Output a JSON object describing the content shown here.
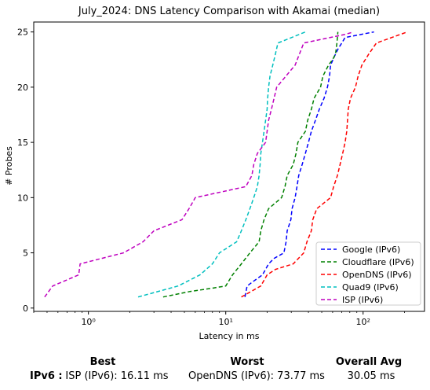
{
  "chart_data": {
    "type": "line",
    "title": "July_2024: DNS Latency Comparison with Akamai (median)",
    "xlabel": "Latency in ms",
    "ylabel": "# Probes",
    "xscale": "log",
    "xlim": [
      0.4,
      280
    ],
    "ylim": [
      -0.3,
      25.9
    ],
    "xticks": [
      {
        "value": 1,
        "label": "10⁰"
      },
      {
        "value": 10,
        "label": "10¹"
      },
      {
        "value": 100,
        "label": "10²"
      }
    ],
    "yticks": [
      0,
      5,
      10,
      15,
      20,
      25
    ],
    "legend_position": "bottom-right",
    "grid": false,
    "series": [
      {
        "name": "Google (IPv6)",
        "color": "#0000ff",
        "x": [
          13.8,
          14.3,
          16.2,
          18.5,
          20.5,
          22.5,
          26.5,
          27.5,
          28.0,
          29.8,
          30.4,
          32.0,
          33.0,
          34.0,
          36.0,
          38.0,
          40.0,
          42.0,
          45.0,
          48.0,
          52.0,
          55.0,
          57.0,
          58.0,
          63.0,
          66.0,
          70.0,
          74.0,
          120.0
        ],
        "y": [
          1,
          2,
          2.5,
          3,
          4,
          4.5,
          5,
          6,
          7,
          8,
          9,
          10,
          11,
          12,
          13,
          14,
          15,
          16,
          17,
          18,
          19,
          20,
          21,
          22,
          23,
          23.5,
          24,
          24.5,
          25
        ]
      },
      {
        "name": "Cloudflare (IPv6)",
        "color": "#008000",
        "x": [
          3.5,
          5.5,
          8.0,
          10.0,
          11.2,
          13.0,
          15.0,
          17.5,
          18.0,
          19.0,
          20.5,
          25.5,
          27.0,
          28.0,
          31.0,
          32.5,
          33.5,
          38.0,
          39.5,
          42.0,
          44.0,
          49.0,
          51.0,
          56.0,
          60.0,
          63.0,
          64.5,
          65.5
        ],
        "y": [
          1,
          1.5,
          1.8,
          2,
          3,
          4,
          5,
          6,
          7,
          8,
          9,
          10,
          11,
          12,
          13,
          14,
          15,
          16,
          17,
          18,
          19,
          20,
          21,
          22,
          22.5,
          23,
          24,
          25
        ]
      },
      {
        "name": "OpenDNS (IPv6)",
        "color": "#ff0000",
        "x": [
          13.0,
          18.0,
          20.0,
          23.0,
          31.0,
          37.0,
          39.0,
          42.0,
          43.0,
          46.0,
          58.0,
          61.0,
          65.0,
          68.0,
          71.0,
          74.0,
          76.0,
          77.0,
          78.0,
          81.0,
          88.0,
          92.0,
          98.0,
          110.0,
          125.0,
          210.0
        ],
        "y": [
          1,
          2,
          3,
          3.5,
          4,
          5,
          6,
          7,
          8,
          9,
          10,
          11,
          12,
          13,
          14,
          15,
          16,
          17,
          18,
          19,
          20,
          21,
          22,
          23,
          24,
          25
        ]
      },
      {
        "name": "Quad9 (IPv6)",
        "color": "#00bfbf",
        "x": [
          2.3,
          4.5,
          6.5,
          8.0,
          9.0,
          12.0,
          13.0,
          14.0,
          15.0,
          16.0,
          17.0,
          17.5,
          17.8,
          18.0,
          18.5,
          19.0,
          19.5,
          20.0,
          20.2,
          20.5,
          21.0,
          22.0,
          23.0,
          24.0,
          38.0
        ],
        "y": [
          1,
          2,
          3,
          4,
          5,
          6,
          7,
          8,
          9,
          10,
          11,
          12,
          13,
          14,
          15,
          16,
          17,
          18,
          19,
          20,
          21,
          22,
          23,
          24,
          25
        ]
      },
      {
        "name": "ISP (IPv6)",
        "color": "#bf00bf",
        "x": [
          0.48,
          0.55,
          0.85,
          0.87,
          1.8,
          2.5,
          3.0,
          4.8,
          5.4,
          6.0,
          14.0,
          15.5,
          16.0,
          17.0,
          19.5,
          20.0,
          20.5,
          21.5,
          22.5,
          23.5,
          32.0,
          37.0,
          75.0,
          85.0
        ],
        "y": [
          1,
          2,
          3,
          4,
          5,
          6,
          7,
          8,
          9,
          10,
          11,
          12,
          13,
          14,
          15,
          16,
          17,
          18,
          19,
          20,
          22,
          24,
          24.8,
          25
        ]
      }
    ]
  },
  "summary": {
    "headers": {
      "best": "Best",
      "worst": "Worst",
      "avg": "Overall Avg"
    },
    "row_label": "IPv6 :",
    "best": "ISP (IPv6): 16.11 ms",
    "worst": "OpenDNS (IPv6): 73.77 ms",
    "avg": "30.05 ms"
  }
}
